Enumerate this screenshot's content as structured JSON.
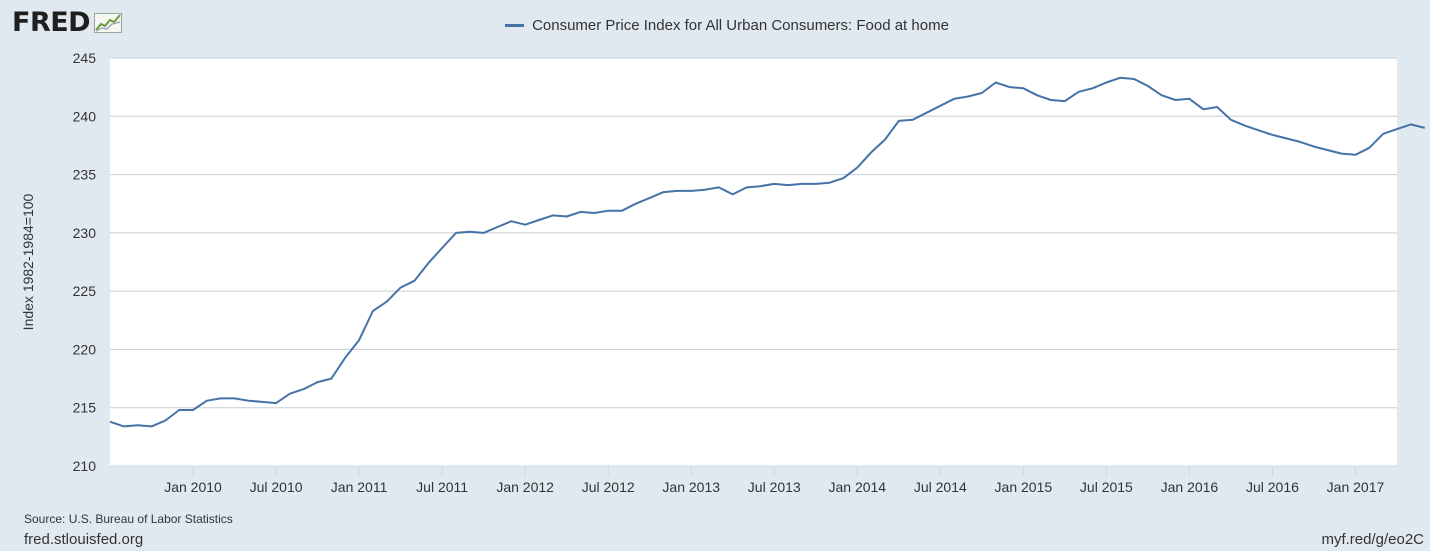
{
  "logo": {
    "text": "FRED"
  },
  "footer": {
    "source": "Source: U.S. Bureau of Labor Statistics",
    "site": "fred.stlouisfed.org",
    "short_link": "myf.red/g/eo2C"
  },
  "colors": {
    "background": "#e1e9f0",
    "plot_background": "#ffffff",
    "series_line": "#4572a7",
    "gridline": "#c8ced5"
  },
  "chart_data": {
    "type": "line",
    "title": "",
    "ylabel": "Index 1982-1984=100",
    "xlabel": "",
    "ylim": [
      210,
      245
    ],
    "yticks": [
      210,
      215,
      220,
      225,
      230,
      235,
      240,
      245
    ],
    "grid": "horizontal",
    "legend": "top-center",
    "x_start": "2009-07",
    "x_end": "2017-04",
    "xticks": [
      {
        "date": "2010-01",
        "label": "Jan 2010"
      },
      {
        "date": "2010-07",
        "label": "Jul 2010"
      },
      {
        "date": "2011-01",
        "label": "Jan 2011"
      },
      {
        "date": "2011-07",
        "label": "Jul 2011"
      },
      {
        "date": "2012-01",
        "label": "Jan 2012"
      },
      {
        "date": "2012-07",
        "label": "Jul 2012"
      },
      {
        "date": "2013-01",
        "label": "Jan 2013"
      },
      {
        "date": "2013-07",
        "label": "Jul 2013"
      },
      {
        "date": "2014-01",
        "label": "Jan 2014"
      },
      {
        "date": "2014-07",
        "label": "Jul 2014"
      },
      {
        "date": "2015-01",
        "label": "Jan 2015"
      },
      {
        "date": "2015-07",
        "label": "Jul 2015"
      },
      {
        "date": "2016-01",
        "label": "Jan 2016"
      },
      {
        "date": "2016-07",
        "label": "Jul 2016"
      },
      {
        "date": "2017-01",
        "label": "Jan 2017"
      }
    ],
    "series": [
      {
        "name": "Consumer Price Index for All Urban Consumers: Food at home",
        "x": [
          "2009-07",
          "2009-08",
          "2009-09",
          "2009-10",
          "2009-11",
          "2009-12",
          "2010-01",
          "2010-02",
          "2010-03",
          "2010-04",
          "2010-05",
          "2010-06",
          "2010-07",
          "2010-08",
          "2010-09",
          "2010-10",
          "2010-11",
          "2010-12",
          "2011-01",
          "2011-02",
          "2011-03",
          "2011-04",
          "2011-05",
          "2011-06",
          "2011-07",
          "2011-08",
          "2011-09",
          "2011-10",
          "2011-11",
          "2011-12",
          "2012-01",
          "2012-02",
          "2012-03",
          "2012-04",
          "2012-05",
          "2012-06",
          "2012-07",
          "2012-08",
          "2012-09",
          "2012-10",
          "2012-11",
          "2012-12",
          "2013-01",
          "2013-02",
          "2013-03",
          "2013-04",
          "2013-05",
          "2013-06",
          "2013-07",
          "2013-08",
          "2013-09",
          "2013-10",
          "2013-11",
          "2013-12",
          "2014-01",
          "2014-02",
          "2014-03",
          "2014-04",
          "2014-05",
          "2014-06",
          "2014-07",
          "2014-08",
          "2014-09",
          "2014-10",
          "2014-11",
          "2014-12",
          "2015-01",
          "2015-02",
          "2015-03",
          "2015-04",
          "2015-05",
          "2015-06",
          "2015-07",
          "2015-08",
          "2015-09",
          "2015-10",
          "2015-11",
          "2015-12",
          "2016-01",
          "2016-02",
          "2016-03",
          "2016-04",
          "2016-05",
          "2016-06",
          "2016-07",
          "2016-08",
          "2016-09",
          "2016-10",
          "2016-11",
          "2016-12",
          "2017-01",
          "2017-02",
          "2017-03",
          "2017-04",
          "2017-05",
          "2017-06"
        ],
        "values": [
          213.8,
          213.4,
          213.5,
          213.4,
          213.9,
          214.8,
          214.8,
          215.6,
          215.8,
          215.8,
          215.6,
          215.5,
          215.4,
          216.2,
          216.6,
          217.2,
          217.5,
          219.3,
          220.8,
          223.3,
          224.1,
          225.3,
          225.9,
          227.4,
          228.7,
          230.0,
          230.1,
          230.0,
          230.5,
          231.0,
          230.7,
          231.1,
          231.5,
          231.4,
          231.8,
          231.7,
          231.9,
          231.9,
          232.5,
          233.0,
          233.5,
          233.6,
          233.6,
          233.7,
          233.9,
          233.3,
          233.9,
          234.0,
          234.2,
          234.1,
          234.2,
          234.2,
          234.3,
          234.7,
          235.6,
          236.9,
          238.0,
          239.6,
          239.7,
          240.3,
          240.9,
          241.5,
          241.7,
          242.0,
          242.9,
          242.5,
          242.4,
          241.8,
          241.4,
          241.3,
          242.1,
          242.4,
          242.9,
          243.3,
          243.2,
          242.6,
          241.8,
          241.4,
          241.5,
          240.6,
          240.8,
          239.7,
          239.2,
          238.8,
          238.4,
          238.1,
          237.8,
          237.4,
          237.1,
          236.8,
          236.7,
          237.3,
          238.5,
          238.9,
          239.3,
          239.0
        ]
      }
    ]
  }
}
